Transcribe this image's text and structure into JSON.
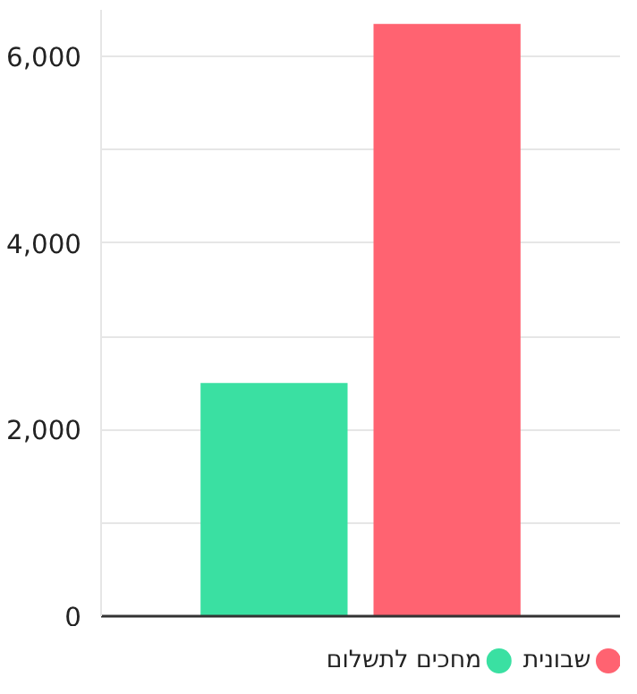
{
  "chart_data": {
    "type": "bar",
    "categories": [
      null
    ],
    "series": [
      {
        "name": "מחכים לתשלום",
        "color": "#3ae0a2",
        "values": [
          2500
        ]
      },
      {
        "name": "שבונית",
        "color": "#ff6371",
        "values": [
          6350
        ]
      }
    ],
    "ylim": [
      0,
      6500
    ],
    "yticks": [
      0,
      {
        "value": 1000,
        "label": null
      },
      {
        "value": 2000,
        "label": "2,000"
      },
      {
        "value": 3000,
        "label": null
      },
      {
        "value": 4000,
        "label": "4,000"
      },
      {
        "value": 5000,
        "label": null
      },
      {
        "value": 6000,
        "label": "6,000"
      }
    ],
    "grid": "y",
    "legend": "bottom",
    "tick_labels": "y"
  }
}
